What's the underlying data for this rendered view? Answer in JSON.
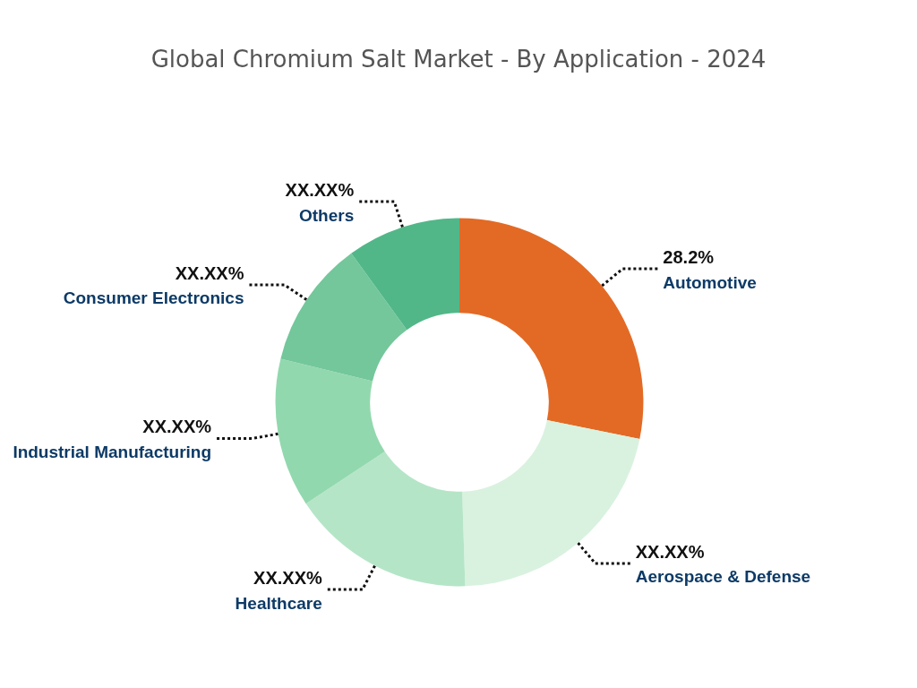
{
  "chart_data": {
    "type": "donut",
    "title": "Global Chromium Salt Market - By Application - 2024",
    "categories": [
      "Automotive",
      "Aerospace & Defense",
      "Healthcare",
      "Industrial Manufacturing",
      "Consumer Electronics",
      "Others"
    ],
    "values": [
      28.2,
      21.3,
      16.2,
      13.1,
      11.2,
      10.0
    ],
    "value_labels": [
      "28.2%",
      "XX.XX%",
      "XX.XX%",
      "XX.XX%",
      "XX.XX%",
      "XX.XX%"
    ],
    "colors": [
      "#e36a25",
      "#d9f2df",
      "#b5e5c7",
      "#92d8ae",
      "#73c79b",
      "#52b788"
    ],
    "legend": false
  }
}
